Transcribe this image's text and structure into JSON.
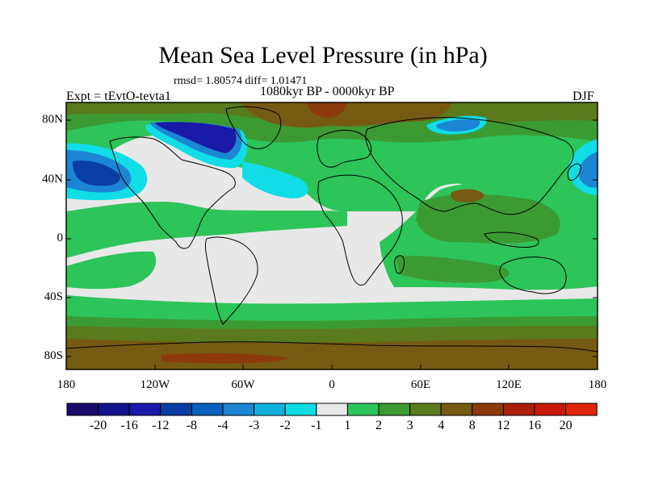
{
  "plot": {
    "title": "Mean Sea Level Pressure (in hPa)",
    "stats": "rmsd= 1.80574  diff= 1.01471",
    "experiment": "Expt = tEvtO-tevta1",
    "period": "1080kyr BP - 0000kyr BP",
    "season": "DJF"
  },
  "axes": {
    "lat_labels": [
      "80N",
      "40N",
      "0",
      "40S",
      "80S"
    ],
    "lon_labels": [
      "180",
      "120W",
      "60W",
      "0",
      "60E",
      "120E",
      "180"
    ]
  },
  "colorbar": {
    "labels": [
      "-20",
      "-16",
      "-12",
      "-8",
      "-4",
      "-3",
      "-2",
      "-1",
      "1",
      "2",
      "3",
      "4",
      "8",
      "12",
      "16",
      "20"
    ],
    "colors": [
      "#1a0a6b",
      "#12128f",
      "#1a1aa8",
      "#0a3ea5",
      "#0a5fc0",
      "#1c86d4",
      "#10b2dc",
      "#10dde6",
      "#e8e8e8",
      "#2dc45a",
      "#3c9a33",
      "#5a7a1e",
      "#765a12",
      "#8c3a0c",
      "#a8200a",
      "#c81a0a",
      "#e0240c"
    ]
  },
  "colors": {
    "neutral": "#e8e8e8",
    "green": "#2dc45a",
    "darkgreen": "#3c9a33",
    "olive": "#5a7a1e",
    "brown": "#765a12",
    "rust": "#8c3a0c",
    "cyan": "#10dde6",
    "sky": "#1c86d4",
    "blue": "#0a3ea5",
    "navy": "#1a1aa8"
  }
}
